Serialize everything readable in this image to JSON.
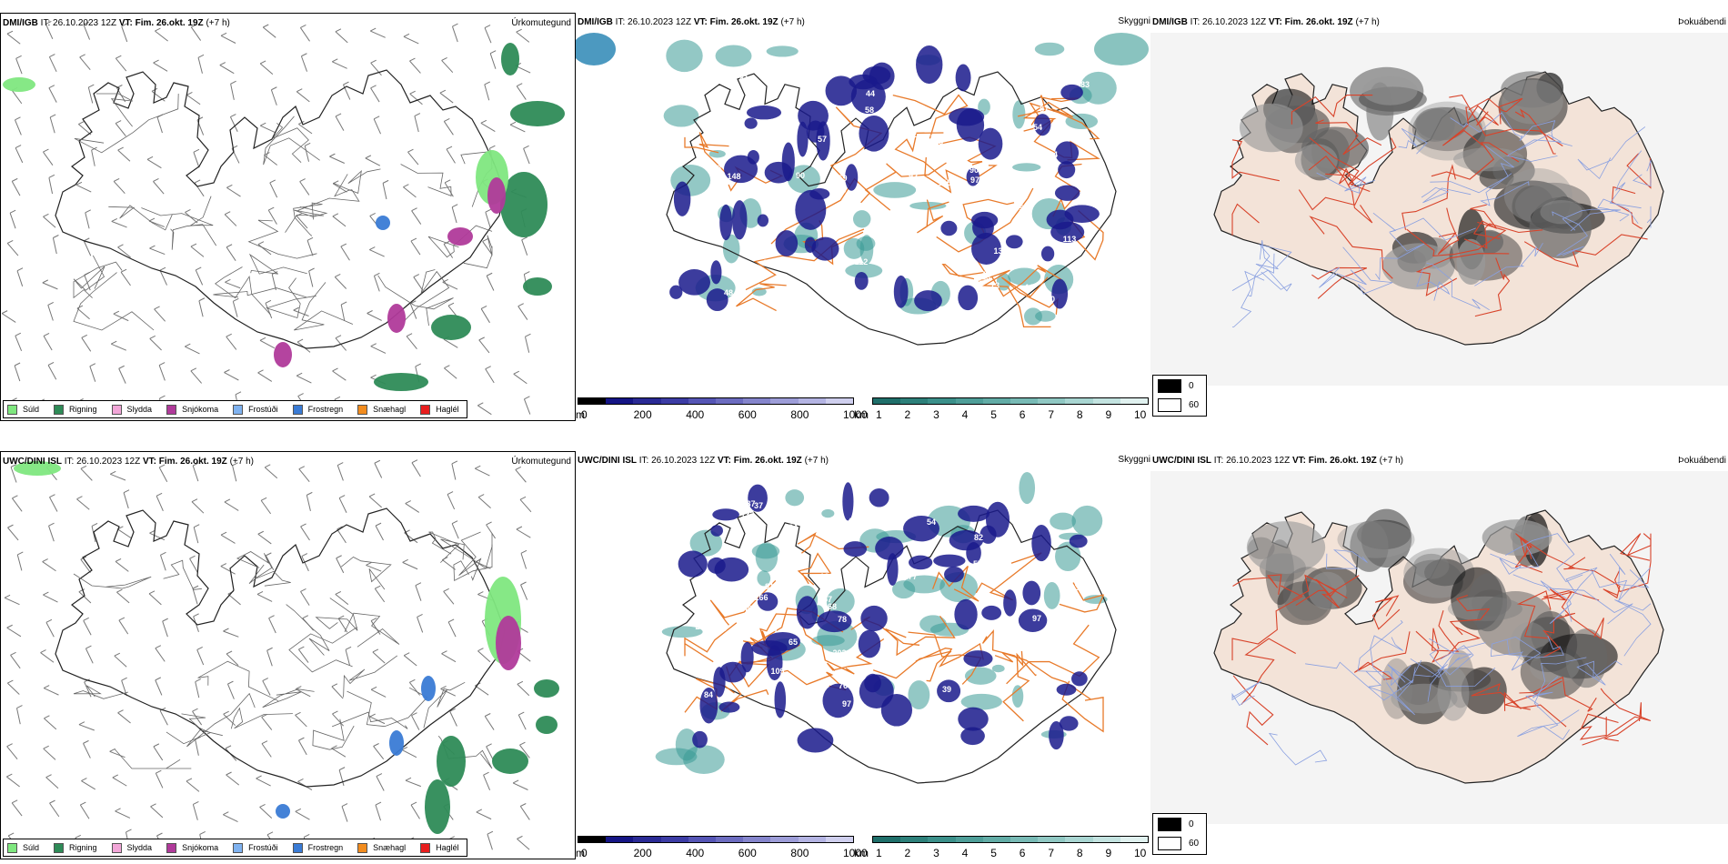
{
  "colors": {
    "sudl": "#7fe77f",
    "rigning": "#2e8b57",
    "slydda": "#f2a6d8",
    "snjokoma": "#b03a9a",
    "frostudi": "#7fb2f0",
    "frostregn": "#3a7bd5",
    "snaehagl": "#f28c1e",
    "haglel": "#e81e1e",
    "cloud_blue": "#1a1a8c",
    "vis_teal": "#3a9b95",
    "road": "#e87a2a",
    "fog_land": "#f3e3d8"
  },
  "rows": [
    {
      "model": "DMI/IGB",
      "init_label": "IT:",
      "init_value": "26.10.2023 12Z",
      "valid_label": "VT:",
      "valid_value": "Fim. 26.okt. 19Z",
      "lead": "(+7 h)",
      "precip_title": "Úrkomutegund",
      "cloud_title": "Skyggni",
      "fog_title": "Þokuábendi",
      "cloud_labels": [
        "115",
        "77",
        "105",
        "97",
        "90",
        "87",
        "92",
        "90",
        "71",
        "69",
        "86",
        "57",
        "45",
        "107",
        "118",
        "108",
        "95",
        "110",
        "44",
        "44",
        "73",
        "103",
        "161",
        "135",
        "112",
        "44",
        "58",
        "83",
        "159",
        "148",
        "105",
        "44",
        "48",
        "49",
        "70",
        "127",
        "237",
        "103",
        "84",
        "90",
        "54",
        "169",
        "161",
        "146",
        "113",
        "81",
        "118",
        "72",
        "99",
        "689"
      ]
    },
    {
      "model": "UWC/DINI ISL",
      "init_label": "IT:",
      "init_value": "26.10.2023 12Z",
      "valid_label": "VT:",
      "valid_value": "Fim. 26.okt. 19Z",
      "lead": "(+7 h)",
      "precip_title": "Úrkomutegund",
      "cloud_title": "Skyggni",
      "fog_title": "Þokuábendi",
      "cloud_labels": [
        "132",
        "81",
        "97",
        "126",
        "109",
        "166",
        "124",
        "124",
        "78",
        "84",
        "81",
        "82",
        "109",
        "24",
        "187",
        "78",
        "85",
        "104",
        "97",
        "274",
        "133",
        "123",
        "202",
        "218",
        "40",
        "37",
        "39",
        "54",
        "36",
        "42",
        "57",
        "44",
        "38",
        "104",
        "84",
        "65",
        "65",
        "76",
        "67",
        "57",
        "68",
        "177"
      ]
    }
  ],
  "precip_legend": [
    {
      "label": "Súld",
      "color": "#7fe77f"
    },
    {
      "label": "Rigning",
      "color": "#2e8b57"
    },
    {
      "label": "Slydda",
      "color": "#f2a6d8"
    },
    {
      "label": "Snjókoma",
      "color": "#b03a9a"
    },
    {
      "label": "Frostúði",
      "color": "#7fb2f0"
    },
    {
      "label": "Frostregn",
      "color": "#3a7bd5"
    },
    {
      "label": "Snæhagl",
      "color": "#f28c1e"
    },
    {
      "label": "Haglél",
      "color": "#e81e1e"
    }
  ],
  "height_scale": {
    "unit": "m",
    "ticks": [
      "0",
      "200",
      "400",
      "600",
      "800",
      "1000"
    ],
    "colors": [
      "#000000",
      "#151585",
      "#2a2a95",
      "#3c3ca5",
      "#5555b5",
      "#6c6cc0",
      "#8585cc",
      "#9d9dd8",
      "#b4b4e3",
      "#cfcfee"
    ]
  },
  "vis_scale": {
    "unit": "km",
    "ticks": [
      "1",
      "2",
      "3",
      "4",
      "5",
      "6",
      "7",
      "8",
      "9",
      "10"
    ],
    "colors": [
      "#1f6f6a",
      "#2d807a",
      "#3b908a",
      "#4e9e98",
      "#62aca6",
      "#78bab5",
      "#90c8c3",
      "#a9d6d2",
      "#c3e3e0",
      "#e0f1ef"
    ]
  },
  "fog_legend": [
    {
      "label": "0",
      "color": "#000000"
    },
    {
      "label": "60",
      "color": "#ffffff"
    }
  ]
}
